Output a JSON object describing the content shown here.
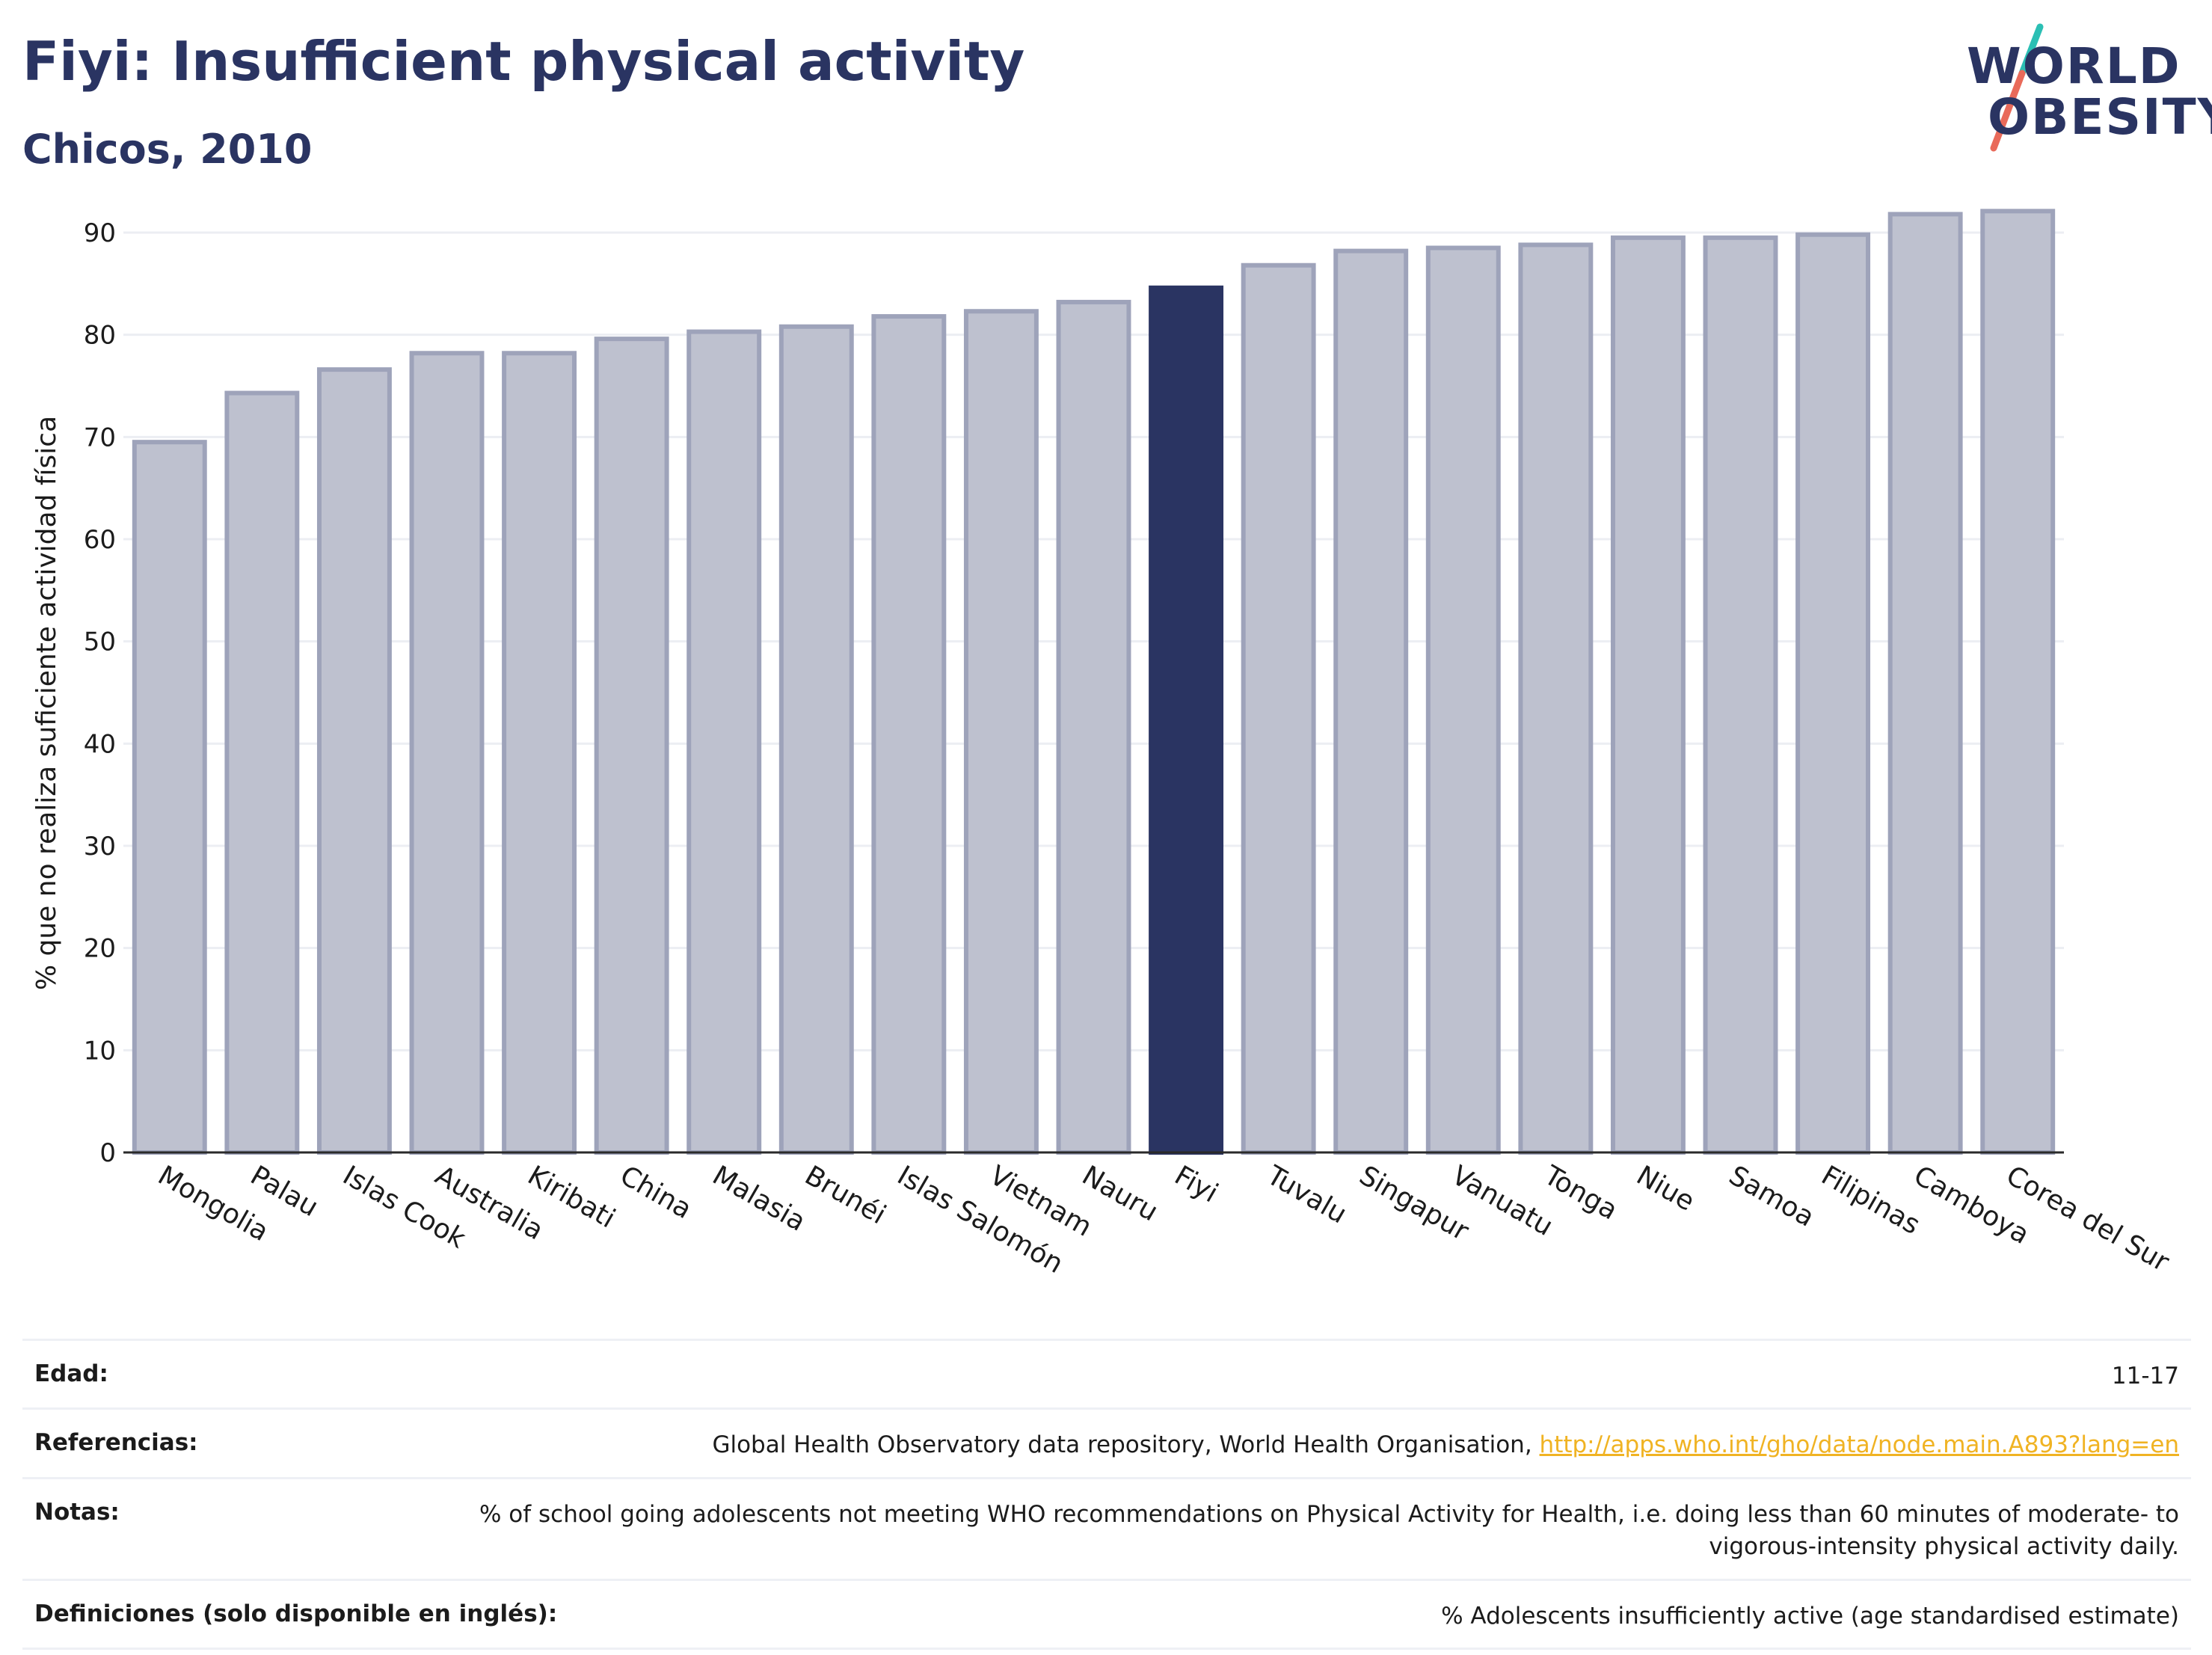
{
  "header": {
    "title": "Fiyi: Insufficient physical activity",
    "subtitle": "Chicos, 2010"
  },
  "logo": {
    "line1": "WORLD",
    "line2": "OBESITY",
    "colors": {
      "text": "#2a3462",
      "slash_teal": "#2bbfb4",
      "slash_coral": "#e96a5a"
    }
  },
  "chart_data": {
    "type": "bar",
    "ylabel": "% que no realiza suficiente actividad física",
    "xlabel": "",
    "ylim": [
      0,
      93
    ],
    "yticks": [
      0,
      10,
      20,
      30,
      40,
      50,
      60,
      70,
      80,
      90
    ],
    "grid": true,
    "categories": [
      "Mongolia",
      "Palau",
      "Islas Cook",
      "Australia",
      "Kiribati",
      "China",
      "Malasia",
      "Brunéi",
      "Islas Salomón",
      "Vietnam",
      "Nauru",
      "Fiyi",
      "Tuvalu",
      "Singapur",
      "Vanuatu",
      "Tonga",
      "Niue",
      "Samoa",
      "Filipinas",
      "Camboya",
      "Corea del Sur"
    ],
    "values": [
      69.5,
      74.3,
      76.6,
      78.2,
      78.2,
      79.6,
      80.3,
      80.8,
      81.8,
      82.3,
      83.2,
      84.6,
      86.8,
      88.2,
      88.5,
      88.8,
      89.5,
      89.5,
      89.8,
      91.8,
      92.1
    ],
    "highlight": "Fiyi",
    "colors": {
      "bar": "#bec1cf",
      "bar_edge": "#9ea3ba",
      "highlight": "#2a3462",
      "grid": "#eceef3",
      "axis": "#2a2a2a"
    }
  },
  "meta": {
    "age": {
      "label": "Edad:",
      "value": "11-17"
    },
    "references": {
      "label": "Referencias:",
      "text": "Global Health Observatory data repository, World Health Organisation, ",
      "link": "http://apps.who.int/gho/data/node.main.A893?lang=en"
    },
    "notes": {
      "label": "Notas:",
      "value": "% of school going adolescents not meeting WHO recommendations on Physical Activity for Health, i.e. doing less than 60 minutes of moderate- to vigorous-intensity physical activity daily."
    },
    "definitions": {
      "label": "Definiciones (solo disponible en inglés):",
      "value": "% Adolescents insufficiently active (age standardised estimate)"
    }
  }
}
